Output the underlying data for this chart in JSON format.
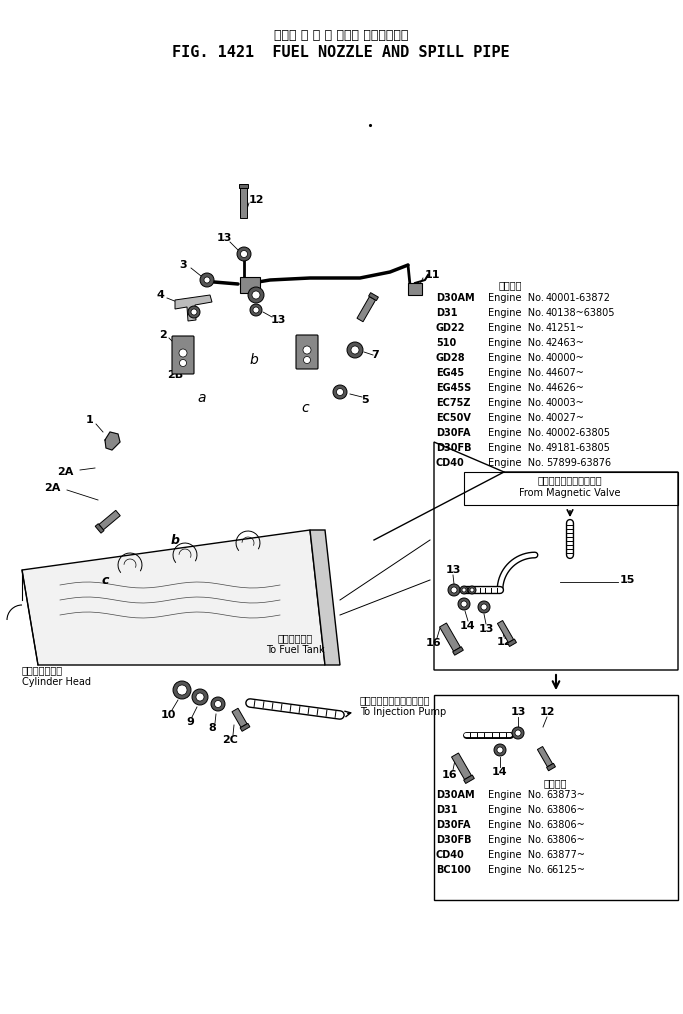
{
  "title_jp": "フェル ノ ズ ル および スピルパイプ",
  "title_en": "FIG. 1421  FUEL NOZZLE AND SPILL PIPE",
  "bg_color": "#ffffff",
  "text_color": "#000000",
  "table1_header": "適用号機",
  "table1_rows": [
    [
      "D30AM",
      "Engine  No.",
      "40001-63872"
    ],
    [
      "D31",
      "Engine  No.",
      "40138~63805"
    ],
    [
      "GD22",
      "Engine  No.",
      "41251~"
    ],
    [
      "510",
      "Engine  No.",
      "42463~"
    ],
    [
      "GD28",
      "Engine  No.",
      "40000~"
    ],
    [
      "EG45",
      "Engine  No.",
      "44607~"
    ],
    [
      "EG45S",
      "Engine  No.",
      "44626~"
    ],
    [
      "EC75Z",
      "Engine  No.",
      "40003~"
    ],
    [
      "EC50V",
      "Engine  No.",
      "40027~"
    ],
    [
      "D30FA",
      "Engine  No.",
      "40002-63805"
    ],
    [
      "D30FB",
      "Engine  No.",
      "49181-63805"
    ],
    [
      "CD40",
      "Engine  No.",
      "57899-63876"
    ]
  ],
  "table2_header": "適用号機",
  "table2_rows": [
    [
      "D30AM",
      "Engine  No.",
      "63873~"
    ],
    [
      "D31",
      "Engine  No.",
      "63806~"
    ],
    [
      "D30FA",
      "Engine  No.",
      "63806~"
    ],
    [
      "D30FB",
      "Engine  No.",
      "63806~"
    ],
    [
      "CD40",
      "Engine  No.",
      "63877~"
    ],
    [
      "BC100",
      "Engine  No.",
      "66125~"
    ]
  ],
  "label_from_magnetic_jp": "マグネチックバルブから",
  "label_from_magnetic_en": "From Magnetic Valve",
  "label_to_fuel_tank_jp": "燃料タンクへ",
  "label_to_fuel_tank_en": "To Fuel Tank",
  "label_to_injection_jp": "インジェクションポンプへ",
  "label_to_injection_en": "To Injection Pump",
  "label_cylinder_head_jp": "シリンダヘッド",
  "label_cylinder_head_en": "Cylinder Head"
}
